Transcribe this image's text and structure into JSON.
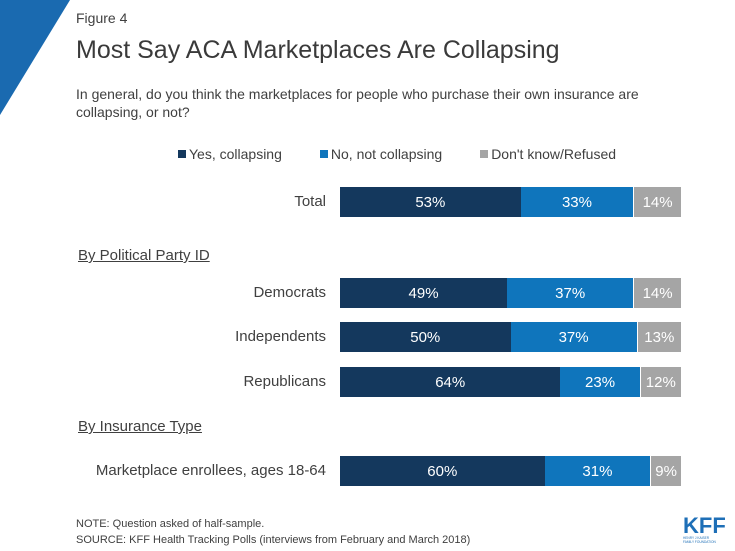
{
  "figure_label": "Figure 4",
  "title": "Most Say ACA Marketplaces Are Collapsing",
  "question": "In general, do you think the marketplaces for people who purchase their own insurance are collapsing, or not?",
  "colors": {
    "yes": "#14385d",
    "no": "#0f75bc",
    "dk": "#a5a5a5",
    "corner": "#1a6ab0"
  },
  "chart_data": {
    "type": "bar",
    "orientation": "horizontal",
    "stacked": true,
    "series": [
      {
        "name": "Yes, collapsing",
        "color": "#14385d"
      },
      {
        "name": "No, not collapsing",
        "color": "#0f75bc"
      },
      {
        "name": "Don't know/Refused",
        "color": "#a5a5a5"
      }
    ],
    "rows": [
      {
        "label": "Total",
        "values": [
          53,
          33,
          14
        ]
      },
      {
        "label": "Democrats",
        "values": [
          49,
          37,
          14
        ]
      },
      {
        "label": "Independents",
        "values": [
          50,
          37,
          13
        ]
      },
      {
        "label": "Republicans",
        "values": [
          64,
          23,
          12
        ]
      },
      {
        "label": "Marketplace enrollees, ages 18-64",
        "values": [
          60,
          31,
          9
        ]
      }
    ],
    "sections": [
      "By Political Party ID",
      "By Insurance Type"
    ],
    "value_suffix": "%",
    "legend_position": "top"
  },
  "note": "NOTE: Question asked of half-sample.",
  "source": "SOURCE: KFF Health Tracking Polls (interviews from February and March 2018)",
  "logo": {
    "text": "KFF",
    "subtitle_line1": "HENRY J KAISER",
    "subtitle_line2": "FAMILY FOUNDATION"
  }
}
